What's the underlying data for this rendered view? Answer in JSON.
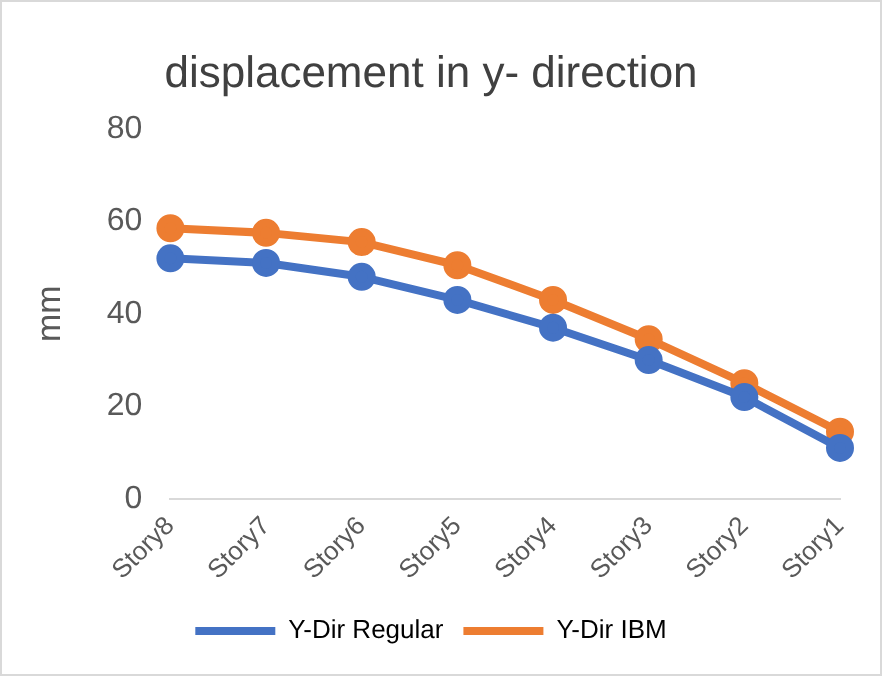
{
  "chart_data": {
    "type": "line",
    "title": "displacement in y- direction",
    "ylabel": "mm",
    "categories": [
      "Story8",
      "Story7",
      "Story6",
      "Story5",
      "Story4",
      "Story3",
      "Story2",
      "Story1"
    ],
    "series": [
      {
        "name": "Y-Dir Regular",
        "color": "#4472c4",
        "values": [
          52,
          51,
          48,
          43,
          37,
          30,
          22,
          11
        ]
      },
      {
        "name": "Y-Dir IBM",
        "color": "#ed7d31",
        "values": [
          58.5,
          57.5,
          55.5,
          50.5,
          43,
          34.5,
          25,
          14.5
        ]
      }
    ],
    "ylim": [
      0,
      80
    ],
    "yticks": [
      0,
      20,
      40,
      60,
      80
    ],
    "grid": false,
    "legend": "bottom",
    "marker": "circle",
    "line_style": "solid"
  }
}
